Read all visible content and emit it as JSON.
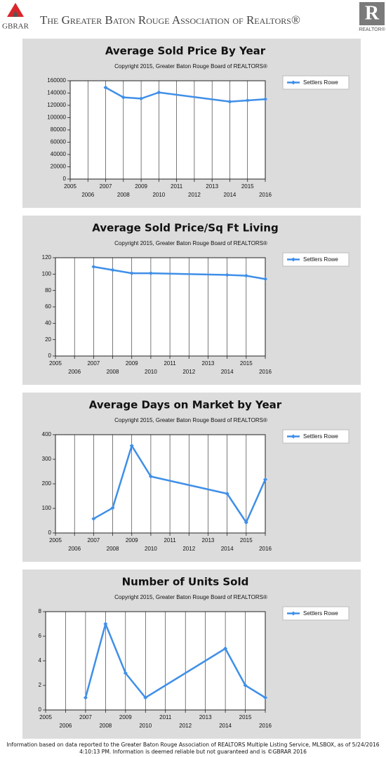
{
  "header": {
    "logo_text": "GBRAR",
    "title": "The Greater Baton Rouge Association of Realtors®",
    "badge_letter": "R",
    "badge_text": "REALTOR®"
  },
  "chart_data": [
    {
      "type": "line",
      "title": "Average Sold Price By Year",
      "subtitle": "Copyright 2015, Greater Baton Rouge Board of REALTORS®",
      "x": [
        2007,
        2008,
        2009,
        2010,
        2014,
        2015,
        2016
      ],
      "series": [
        {
          "name": "Settlers Rowe",
          "color": "#3f8fe8",
          "values": [
            149000,
            133000,
            131000,
            141000,
            126000,
            128000,
            130000
          ]
        }
      ],
      "xlim": [
        2005,
        2016
      ],
      "xticks": [
        2005,
        2006,
        2007,
        2008,
        2009,
        2010,
        2011,
        2012,
        2013,
        2014,
        2015,
        2016
      ],
      "ylim": [
        0,
        160000
      ],
      "yticks": [
        0,
        20000,
        40000,
        60000,
        80000,
        100000,
        120000,
        140000,
        160000
      ],
      "grid": "x",
      "legend": "top-right"
    },
    {
      "type": "line",
      "title": "Average Sold Price/Sq Ft Living",
      "subtitle": "Copyright 2015, Greater Baton Rouge Board of REALTORS®",
      "x": [
        2007,
        2008,
        2009,
        2010,
        2014,
        2015,
        2016
      ],
      "series": [
        {
          "name": "Settlers Rowe",
          "color": "#3f8fe8",
          "values": [
            109,
            105,
            101,
            101,
            99,
            98,
            94
          ]
        }
      ],
      "xlim": [
        2005,
        2016
      ],
      "xticks": [
        2005,
        2006,
        2007,
        2008,
        2009,
        2010,
        2011,
        2012,
        2013,
        2014,
        2015,
        2016
      ],
      "ylim": [
        0,
        120
      ],
      "yticks": [
        0,
        20,
        40,
        60,
        80,
        100,
        120
      ],
      "grid": "x",
      "legend": "top-right"
    },
    {
      "type": "line",
      "title": "Average Days on Market by Year",
      "subtitle": "Copyright 2015, Greater Baton Rouge Board of REALTORS®",
      "x": [
        2007,
        2008,
        2009,
        2010,
        2014,
        2015,
        2016
      ],
      "series": [
        {
          "name": "Settlers Rowe",
          "color": "#3f8fe8",
          "values": [
            58,
            102,
            355,
            230,
            160,
            43,
            218
          ]
        }
      ],
      "xlim": [
        2005,
        2016
      ],
      "xticks": [
        2005,
        2006,
        2007,
        2008,
        2009,
        2010,
        2011,
        2012,
        2013,
        2014,
        2015,
        2016
      ],
      "ylim": [
        0,
        400
      ],
      "yticks": [
        0,
        100,
        200,
        300,
        400
      ],
      "grid": "x",
      "legend": "top-right"
    },
    {
      "type": "line",
      "title": "Number of Units Sold",
      "subtitle": "Copyright 2015, Greater Baton Rouge Board of REALTORS®",
      "x": [
        2007,
        2008,
        2009,
        2010,
        2014,
        2015,
        2016
      ],
      "series": [
        {
          "name": "Settlers Rowe",
          "color": "#3f8fe8",
          "values": [
            1,
            7,
            3,
            1,
            5,
            2,
            1
          ]
        }
      ],
      "xlim": [
        2005,
        2016
      ],
      "xticks": [
        2005,
        2006,
        2007,
        2008,
        2009,
        2010,
        2011,
        2012,
        2013,
        2014,
        2015,
        2016
      ],
      "ylim": [
        0,
        8
      ],
      "yticks": [
        0,
        2,
        4,
        6,
        8
      ],
      "grid": "x",
      "legend": "top-right"
    }
  ],
  "footer": "Information based on data reported to the Greater Baton Rouge Association of REALTORS Multiple Listing Service, MLSBOX, as of 5/24/2016 4:10:13 PM. Information is deemed reliable but not guaranteed and is ©GBRAR 2016"
}
